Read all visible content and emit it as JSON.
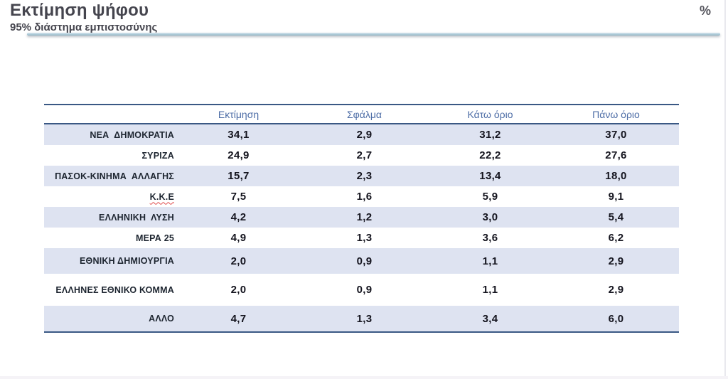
{
  "header": {
    "title": "Εκτίμηση ψήφου",
    "subtitle": "95% διάστημα εμπιστοσύνης",
    "unit_label": "%"
  },
  "colors": {
    "row_band": "#dee3f1",
    "table_rule": "#3a5884",
    "column_header_text": "#4d6da6",
    "title_text": "#45454e",
    "spellcheck_underline": "#e04f4f"
  },
  "table": {
    "columns": [
      "Εκτίμηση",
      "Σφάλμα",
      "Κάτω όριο",
      "Πάνω όριο"
    ],
    "rows": [
      {
        "party": "ΝΕΑ  ΔΗΜΟΚΡΑΤΙΑ",
        "estimate": "34,1",
        "error": "2,9",
        "lower": "31,2",
        "upper": "37,0"
      },
      {
        "party": "ΣΥΡΙΖΑ",
        "estimate": "24,9",
        "error": "2,7",
        "lower": "22,2",
        "upper": "27,6"
      },
      {
        "party": "ΠΑΣΟΚ-ΚΙΝΗΜΑ  ΑΛΛΑΓΗΣ",
        "estimate": "15,7",
        "error": "2,3",
        "lower": "13,4",
        "upper": "18,0"
      },
      {
        "party": "Κ.Κ.Ε",
        "estimate": "7,5",
        "error": "1,6",
        "lower": "5,9",
        "upper": "9,1"
      },
      {
        "party": "ΕΛΛΗΝΙΚΗ  ΛΥΣΗ",
        "estimate": "4,2",
        "error": "1,2",
        "lower": "3,0",
        "upper": "5,4"
      },
      {
        "party": "ΜΕΡΑ 25",
        "estimate": "4,9",
        "error": "1,3",
        "lower": "3,6",
        "upper": "6,2"
      },
      {
        "party": "ΕΘΝΙΚΗ ΔΗΜΙΟΥΡΓΙΑ",
        "estimate": "2,0",
        "error": "0,9",
        "lower": "1,1",
        "upper": "2,9"
      },
      {
        "party": "ΕΛΛΗΝΕΣ ΕΘΝΙΚΟ ΚΟΜΜΑ",
        "estimate": "2,0",
        "error": "0,9",
        "lower": "1,1",
        "upper": "2,9"
      },
      {
        "party": "ΑΛΛΟ",
        "estimate": "4,7",
        "error": "1,3",
        "lower": "3,4",
        "upper": "6,0"
      }
    ]
  },
  "chart_data": {
    "type": "table",
    "title": "Εκτίμηση ψήφου",
    "subtitle": "95% διάστημα εμπιστοσύνης",
    "unit": "%",
    "columns": [
      "Εκτίμηση",
      "Σφάλμα",
      "Κάτω όριο",
      "Πάνω όριο"
    ],
    "categories": [
      "ΝΕΑ ΔΗΜΟΚΡΑΤΙΑ",
      "ΣΥΡΙΖΑ",
      "ΠΑΣΟΚ-ΚΙΝΗΜΑ ΑΛΛΑΓΗΣ",
      "Κ.Κ.Ε",
      "ΕΛΛΗΝΙΚΗ ΛΥΣΗ",
      "ΜΕΡΑ 25",
      "ΕΘΝΙΚΗ ΔΗΜΙΟΥΡΓΙΑ",
      "ΕΛΛΗΝΕΣ ΕΘΝΙΚΟ ΚΟΜΜΑ",
      "ΑΛΛΟ"
    ],
    "series": [
      {
        "name": "Εκτίμηση",
        "values": [
          34.1,
          24.9,
          15.7,
          7.5,
          4.2,
          4.9,
          2.0,
          2.0,
          4.7
        ]
      },
      {
        "name": "Σφάλμα",
        "values": [
          2.9,
          2.7,
          2.3,
          1.6,
          1.2,
          1.3,
          0.9,
          0.9,
          1.3
        ]
      },
      {
        "name": "Κάτω όριο",
        "values": [
          31.2,
          22.2,
          13.4,
          5.9,
          3.0,
          3.6,
          1.1,
          1.1,
          3.4
        ]
      },
      {
        "name": "Πάνω όριο",
        "values": [
          37.0,
          27.6,
          18.0,
          9.1,
          5.4,
          6.2,
          2.9,
          2.9,
          6.0
        ]
      }
    ]
  }
}
